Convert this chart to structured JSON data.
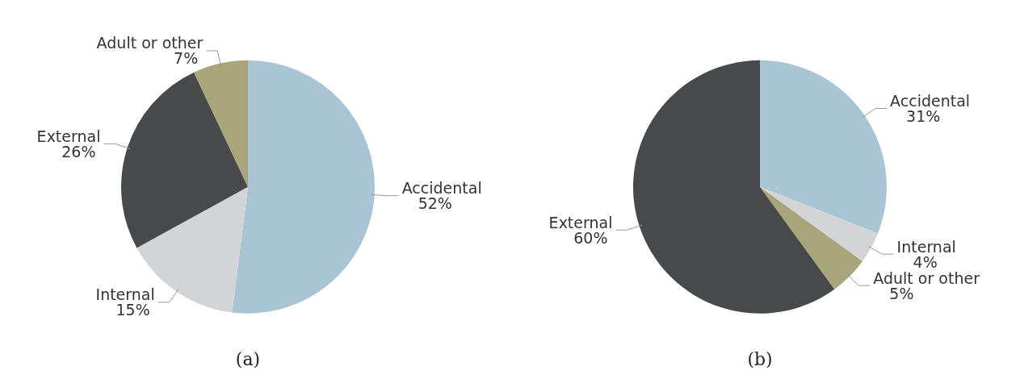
{
  "chart_data": [
    {
      "type": "pie",
      "title": "(a)",
      "categories": [
        "Accidental",
        "Internal",
        "External",
        "Adult or other"
      ],
      "values": [
        52,
        15,
        26,
        7
      ],
      "value_labels": [
        "52%",
        "15%",
        "26%",
        "7%"
      ],
      "colors": [
        "#a9c4d2",
        "#d3d4d6",
        "#48494b",
        "#a8a57a"
      ],
      "legend": false
    },
    {
      "type": "pie",
      "title": "(b)",
      "categories": [
        "Accidental",
        "Internal",
        "Adult or other",
        "External"
      ],
      "values": [
        31,
        4,
        5,
        60
      ],
      "value_labels": [
        "31%",
        "4%",
        "5%",
        "60%"
      ],
      "colors": [
        "#a9c4d2",
        "#d3d4d6",
        "#a8a57a",
        "#48494b"
      ],
      "legend": false
    }
  ]
}
